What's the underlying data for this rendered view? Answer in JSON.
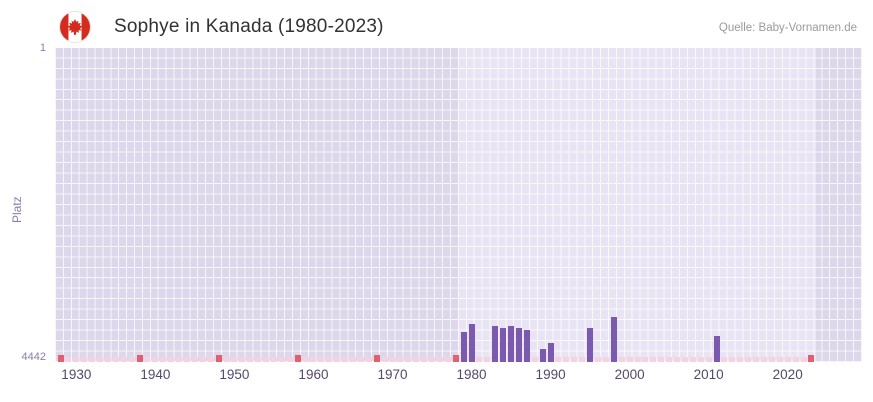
{
  "header": {
    "title": "Sophye in Kanada (1980-2023)",
    "source": "Quelle: Baby-Vornamen.de",
    "flag_icon": "canada-flag"
  },
  "chart_data": {
    "type": "bar",
    "title": "Sophye in Kanada (1980-2023)",
    "xlabel": "",
    "ylabel": "Platz",
    "legend": "none",
    "grid": true,
    "y_axis": {
      "min": 1,
      "max": 4442,
      "inverted": true,
      "tick_labels": [
        "1",
        "4442"
      ]
    },
    "x_ticks": [
      1930,
      1940,
      1950,
      1960,
      1970,
      1980,
      1990,
      2000,
      2010,
      2020
    ],
    "x_range": [
      1927.3,
      2029.4
    ],
    "data_range": [
      1978.3,
      2023.6
    ],
    "series": [
      {
        "name": "Platz",
        "points": [
          {
            "year": 1979,
            "rank": 4020
          },
          {
            "year": 1980,
            "rank": 3900
          },
          {
            "year": 1983,
            "rank": 3930
          },
          {
            "year": 1984,
            "rank": 3960
          },
          {
            "year": 1985,
            "rank": 3935
          },
          {
            "year": 1986,
            "rank": 3955
          },
          {
            "year": 1987,
            "rank": 3990
          },
          {
            "year": 1989,
            "rank": 4260
          },
          {
            "year": 1990,
            "rank": 4170
          },
          {
            "year": 1995,
            "rank": 3955
          },
          {
            "year": 1998,
            "rank": 3810
          },
          {
            "year": 2011,
            "rank": 4075
          }
        ]
      }
    ],
    "unranked_years": [
      1928,
      1929,
      1930,
      1931,
      1932,
      1933,
      1934,
      1935,
      1936,
      1937,
      1938,
      1939,
      1940,
      1941,
      1942,
      1943,
      1944,
      1945,
      1946,
      1947,
      1948,
      1949,
      1950,
      1951,
      1952,
      1953,
      1954,
      1955,
      1956,
      1957,
      1958,
      1959,
      1960,
      1961,
      1962,
      1963,
      1964,
      1965,
      1966,
      1967,
      1968,
      1969,
      1970,
      1971,
      1972,
      1973,
      1974,
      1975,
      1976,
      1977,
      1978,
      1981,
      1982,
      1988,
      1991,
      1992,
      1993,
      1994,
      1996,
      1997,
      1999,
      2000,
      2001,
      2002,
      2003,
      2004,
      2005,
      2006,
      2007,
      2008,
      2009,
      2010,
      2012,
      2013,
      2014,
      2015,
      2016,
      2017,
      2018,
      2019,
      2020,
      2021,
      2022,
      2023
    ],
    "marker_years": [
      1928,
      1938,
      1948,
      1958,
      1968,
      1978,
      2023
    ],
    "colors": {
      "bar": "#7b59ae",
      "plot_bg": "#dcd7eb",
      "plot_bg_data": "#e8e4f3",
      "grid_line": "#ffffff",
      "unranked": "#f4d2e0",
      "marker": "#e0606f",
      "axis_text": "#8b7bb0",
      "x_tick_text": "#54496b",
      "title_text": "#323232",
      "source_text": "#9b9b9b",
      "flag_red": "#d52b1e"
    }
  }
}
